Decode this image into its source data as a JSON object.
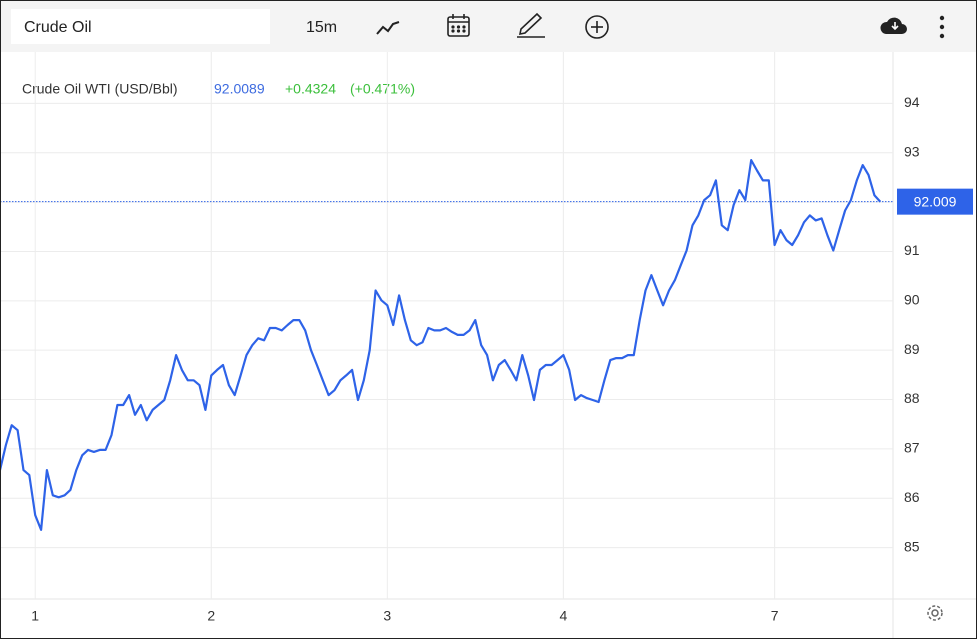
{
  "toolbar": {
    "symbol": "Crude Oil",
    "interval": "15m"
  },
  "chart_data": {
    "type": "line",
    "legend": {
      "name": "Crude Oil WTI (USD/Bbl)",
      "change": "+0.4324",
      "change_percent": "(+0.471%)"
    },
    "last_label": "92.009",
    "series": [
      {
        "name": "Crude Oil WTI (USD/Bbl)",
        "color": "#2e63e8",
        "values": [
          86.57,
          87.08,
          87.48,
          87.38,
          86.57,
          86.47,
          85.66,
          85.36,
          86.57,
          86.06,
          86.02,
          86.06,
          86.17,
          86.57,
          86.87,
          86.98,
          86.94,
          86.98,
          86.98,
          87.28,
          87.89,
          87.89,
          88.09,
          87.69,
          87.89,
          87.58,
          87.79,
          87.89,
          87.99,
          88.39,
          88.9,
          88.6,
          88.39,
          88.39,
          88.29,
          87.79,
          88.49,
          88.6,
          88.7,
          88.29,
          88.09,
          88.49,
          88.9,
          89.1,
          89.24,
          89.2,
          89.45,
          89.45,
          89.4,
          89.51,
          89.61,
          89.61,
          89.4,
          89.0,
          88.7,
          88.39,
          88.09,
          88.19,
          88.39,
          88.49,
          88.6,
          87.99,
          88.39,
          89.0,
          90.21,
          90.01,
          89.91,
          89.51,
          90.11,
          89.61,
          89.2,
          89.1,
          89.16,
          89.45,
          89.4,
          89.4,
          89.45,
          89.37,
          89.31,
          89.31,
          89.4,
          89.61,
          89.1,
          88.9,
          88.39,
          88.7,
          88.8,
          88.6,
          88.39,
          88.9,
          88.49,
          87.99,
          88.6,
          88.7,
          88.7,
          88.8,
          88.9,
          88.6,
          87.99,
          88.09,
          88.03,
          87.99,
          87.95,
          88.39,
          88.8,
          88.84,
          88.84,
          88.9,
          88.9,
          89.61,
          90.21,
          90.52,
          90.21,
          89.91,
          90.21,
          90.42,
          90.72,
          91.02,
          91.53,
          91.73,
          92.04,
          92.14,
          92.44,
          91.53,
          91.43,
          91.94,
          92.24,
          92.04,
          92.85,
          92.64,
          92.44,
          92.44,
          91.13,
          91.43,
          91.23,
          91.13,
          91.33,
          91.59,
          91.73,
          91.63,
          91.67,
          91.33,
          91.02,
          91.43,
          91.83,
          92.04,
          92.44,
          92.75,
          92.55,
          92.14,
          92.0089
        ]
      }
    ],
    "xlim": [
      0,
      152
    ],
    "xticks": [
      {
        "value": 6,
        "label": "1"
      },
      {
        "value": 36,
        "label": "2"
      },
      {
        "value": 66,
        "label": "3"
      },
      {
        "value": 96,
        "label": "4"
      },
      {
        "value": 132,
        "label": "7"
      }
    ],
    "ylim": [
      84,
      95
    ],
    "yticks": [
      85,
      86,
      87,
      88,
      89,
      90,
      91,
      92,
      93,
      94
    ],
    "grid": true
  }
}
